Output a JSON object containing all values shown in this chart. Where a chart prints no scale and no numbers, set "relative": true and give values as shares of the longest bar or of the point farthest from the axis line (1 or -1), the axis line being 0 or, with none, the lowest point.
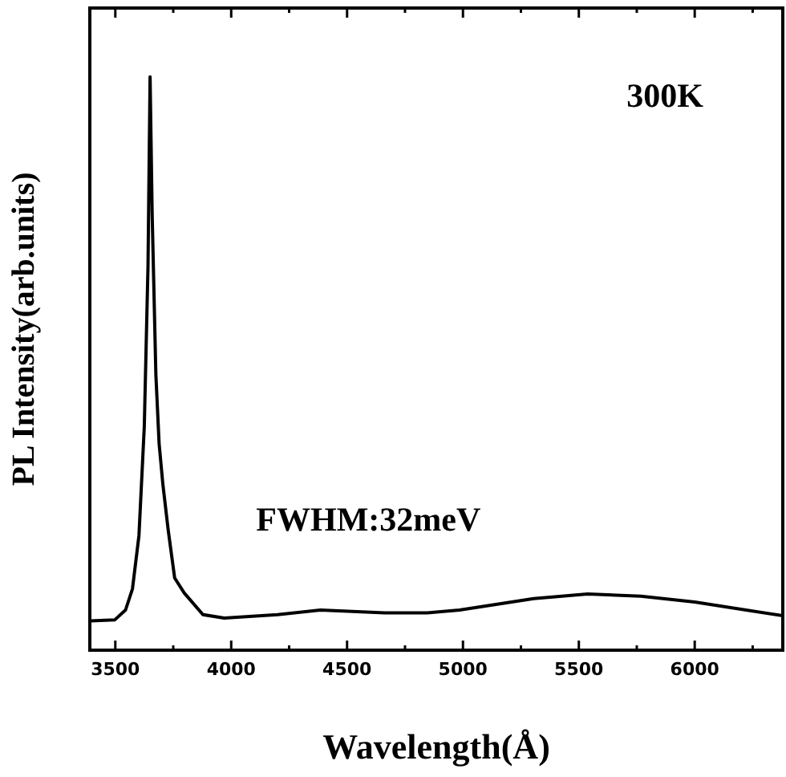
{
  "chart_data": {
    "type": "line",
    "relative": true,
    "xlabel": "Wavelength(Å)",
    "ylabel": "PL Intensity(arb.units)",
    "annotations": [
      "300K",
      "FWHM:32meV"
    ],
    "xlim": [
      3390,
      6380
    ],
    "xticks": [
      3500,
      {
        "value": 3750,
        "label": null
      },
      4000,
      {
        "value": 4250,
        "label": null
      },
      4500,
      {
        "value": 4750,
        "label": null
      },
      5000,
      {
        "value": 5250,
        "label": null
      },
      5500,
      {
        "value": 5750,
        "label": null
      },
      6000,
      {
        "value": 6250,
        "label": null
      }
    ],
    "grid": false,
    "legend": false,
    "marker": "none",
    "line_style": "solid",
    "series": [
      {
        "color": "#000000",
        "x": [
          3394,
          3498,
          3544,
          3574,
          3602,
          3625,
          3641,
          3650,
          3659,
          3675,
          3689,
          3705,
          3728,
          3756,
          3797,
          3878,
          3970,
          4200,
          4385,
          4662,
          4846,
          4985,
          5305,
          5538,
          5768,
          6000,
          6380
        ],
        "values": [
          0.051,
          0.053,
          0.07,
          0.107,
          0.2,
          0.39,
          0.67,
          1.0,
          0.76,
          0.48,
          0.36,
          0.29,
          0.21,
          0.126,
          0.1,
          0.062,
          0.056,
          0.062,
          0.07,
          0.065,
          0.065,
          0.07,
          0.09,
          0.098,
          0.094,
          0.084,
          0.06
        ]
      }
    ]
  }
}
